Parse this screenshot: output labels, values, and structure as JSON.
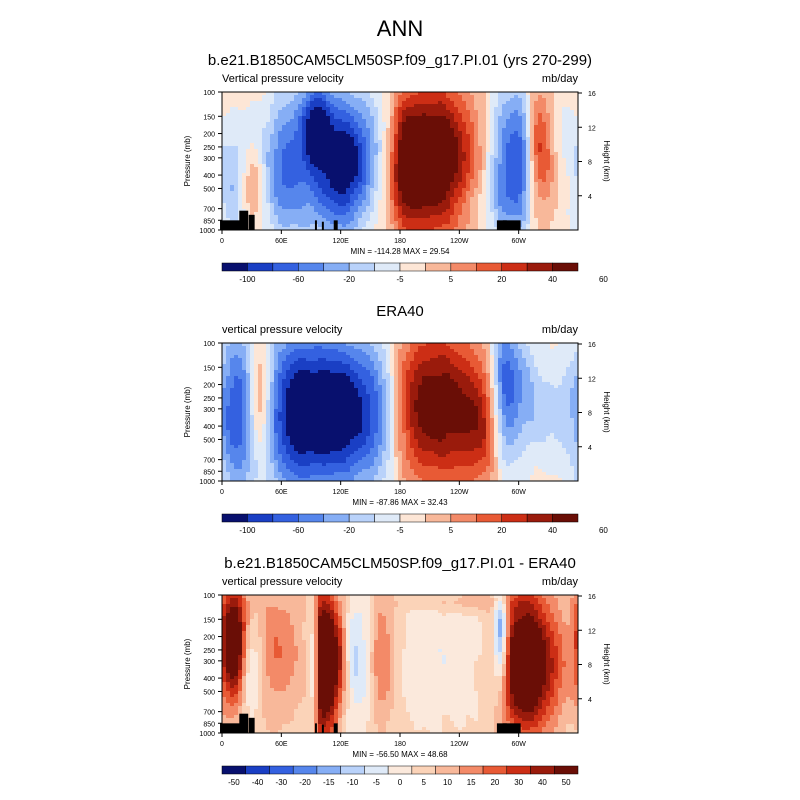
{
  "figure": {
    "title": "ANN"
  },
  "colors": {
    "bwr": [
      "#08106e",
      "#1a3fc4",
      "#3461e0",
      "#5686ec",
      "#86aef5",
      "#b9d2fa",
      "#dfeaf8",
      "#fde6d6",
      "#f8b89a",
      "#f38a68",
      "#e85a35",
      "#cc2e15",
      "#9a1b0c",
      "#6a0e06"
    ],
    "diff": [
      "#08106e",
      "#1a3fc4",
      "#3461e0",
      "#5686ec",
      "#86aef5",
      "#b9d2fa",
      "#dfeaf8",
      "#fbe9dc",
      "#fbd3b8",
      "#f8b89a",
      "#f38a68",
      "#e85a35",
      "#cc2e15",
      "#9a1b0c",
      "#6a0e06"
    ],
    "land": "#000000"
  },
  "chart_data": [
    {
      "type": "heatmap",
      "title": "b.e21.B1850CAM5CLM50SP.f09_g17.PI.01 (yrs 270-299)",
      "left_label": "Vertical pressure velocity",
      "right_label": "mb/day",
      "ylabel": "Pressure (mb)",
      "ylabel_right": "Height (km)",
      "x_ticks": [
        "0",
        "60E",
        "120E",
        "180",
        "120W",
        "60W"
      ],
      "y_ticks": [
        "100",
        "150",
        "200",
        "250",
        "300",
        "400",
        "500",
        "700",
        "850",
        "1000"
      ],
      "y_ticks_right": [
        "16",
        "12",
        "8",
        "4"
      ],
      "min_max": "MIN = -114.28   MAX =  29.54",
      "colorbar_labels": [
        "-100",
        "-60",
        "-20",
        "-5",
        "5",
        "20",
        "40",
        "60"
      ],
      "colorbar_bins": 14,
      "palette": "bwr",
      "bg_level": 0.2,
      "features": [
        [
          15,
          0.3,
          15,
          0.3,
          -0.8
        ],
        [
          30,
          0.3,
          9,
          0.2,
          1.0
        ],
        [
          60,
          0.4,
          12,
          0.35,
          -0.6
        ],
        [
          100,
          0.5,
          35,
          0.4,
          -1.5
        ],
        [
          95,
          0.78,
          10,
          0.18,
          -1.2
        ],
        [
          125,
          0.4,
          15,
          0.3,
          -0.8
        ],
        [
          150,
          0.6,
          25,
          0.3,
          -0.7
        ],
        [
          212,
          0.5,
          30,
          0.38,
          2.3
        ],
        [
          185,
          0.5,
          10,
          0.3,
          1.0
        ],
        [
          289,
          0.5,
          14,
          0.4,
          -1.4
        ],
        [
          305,
          0.55,
          8,
          0.35,
          -1.0
        ],
        [
          320,
          0.6,
          12,
          0.3,
          1.3
        ],
        [
          265,
          0.2,
          30,
          0.15,
          -0.3
        ],
        [
          340,
          0.7,
          15,
          0.2,
          -0.4
        ]
      ],
      "land": [
        [
          8,
          1.0,
          20,
          0.07
        ],
        [
          22,
          1.0,
          9,
          0.14
        ],
        [
          30,
          1.0,
          6,
          0.11
        ],
        [
          95,
          1.0,
          2,
          0.07
        ],
        [
          102,
          1.0,
          2,
          0.06
        ],
        [
          115,
          1.0,
          4,
          0.07
        ],
        [
          283,
          1.0,
          10,
          0.07
        ],
        [
          293,
          1.0,
          18,
          0.07
        ]
      ]
    },
    {
      "type": "heatmap",
      "title": "ERA40",
      "left_label": "vertical pressure velocity",
      "right_label": "mb/day",
      "ylabel": "Pressure (mb)",
      "ylabel_right": "Height (km)",
      "x_ticks": [
        "0",
        "60E",
        "120E",
        "180",
        "120W",
        "60W"
      ],
      "y_ticks": [
        "100",
        "150",
        "200",
        "250",
        "300",
        "400",
        "500",
        "700",
        "850",
        "1000"
      ],
      "y_ticks_right": [
        "16",
        "12",
        "8",
        "4"
      ],
      "min_max": "MIN = -87.86   MAX =  32.43",
      "colorbar_labels": [
        "-100",
        "-60",
        "-20",
        "-5",
        "5",
        "20",
        "40",
        "60"
      ],
      "colorbar_bins": 14,
      "palette": "bwr",
      "bg_level": 0.2,
      "features": [
        [
          15,
          0.5,
          15,
          0.45,
          -1.5
        ],
        [
          38,
          0.6,
          8,
          0.3,
          1.2
        ],
        [
          70,
          0.5,
          22,
          0.45,
          -1.3
        ],
        [
          100,
          0.5,
          28,
          0.4,
          -1.6
        ],
        [
          130,
          0.5,
          20,
          0.4,
          -1.2
        ],
        [
          160,
          0.5,
          15,
          0.4,
          -0.9
        ],
        [
          195,
          0.55,
          20,
          0.4,
          1.0
        ],
        [
          230,
          0.55,
          25,
          0.4,
          1.4
        ],
        [
          285,
          0.6,
          10,
          0.4,
          -1.8
        ],
        [
          305,
          0.6,
          12,
          0.35,
          -0.9
        ],
        [
          270,
          0.4,
          20,
          0.3,
          1.0
        ],
        [
          335,
          0.5,
          15,
          0.3,
          -0.5
        ]
      ],
      "land": []
    },
    {
      "type": "heatmap",
      "title": "b.e21.B1850CAM5CLM50SP.f09_g17.PI.01 - ERA40",
      "left_label": "vertical pressure velocity",
      "right_label": "mb/day",
      "ylabel": "Pressure (mb)",
      "ylabel_right": "Height (km)",
      "x_ticks": [
        "0",
        "60E",
        "120E",
        "180",
        "120W",
        "60W"
      ],
      "y_ticks": [
        "100",
        "150",
        "200",
        "250",
        "300",
        "400",
        "500",
        "700",
        "850",
        "1000"
      ],
      "y_ticks_right": [
        "16",
        "12",
        "8",
        "4"
      ],
      "min_max": "MIN = -56.50   MAX =  48.68",
      "colorbar_labels": [
        "-50",
        "-40",
        "-30",
        "-20",
        "-15",
        "-10",
        "-5",
        "0",
        "5",
        "10",
        "15",
        "20",
        "30",
        "40",
        "50"
      ],
      "colorbar_bins": 15,
      "palette": "diff",
      "bg_level": 0.22,
      "features": [
        [
          12,
          0.65,
          10,
          0.3,
          2.3
        ],
        [
          28,
          0.5,
          8,
          0.25,
          -1.0
        ],
        [
          55,
          0.6,
          20,
          0.35,
          0.7
        ],
        [
          100,
          0.5,
          5,
          0.4,
          2.2
        ],
        [
          93,
          0.5,
          4,
          0.3,
          -0.9
        ],
        [
          110,
          0.5,
          5,
          0.35,
          2.0
        ],
        [
          120,
          0.55,
          5,
          0.3,
          1.2
        ],
        [
          140,
          0.55,
          15,
          0.35,
          -0.7
        ],
        [
          160,
          0.55,
          10,
          0.35,
          1.0
        ],
        [
          220,
          0.55,
          30,
          0.35,
          -0.3
        ],
        [
          282,
          0.7,
          5,
          0.25,
          -1.6
        ],
        [
          303,
          0.5,
          15,
          0.35,
          2.3
        ],
        [
          330,
          0.5,
          15,
          0.35,
          1.0
        ],
        [
          255,
          0.95,
          40,
          0.05,
          0.4
        ]
      ],
      "land": [
        [
          8,
          1.0,
          20,
          0.07
        ],
        [
          22,
          1.0,
          9,
          0.14
        ],
        [
          30,
          1.0,
          6,
          0.11
        ],
        [
          95,
          1.0,
          2,
          0.07
        ],
        [
          102,
          1.0,
          2,
          0.06
        ],
        [
          115,
          1.0,
          4,
          0.07
        ],
        [
          283,
          1.0,
          10,
          0.07
        ],
        [
          293,
          1.0,
          18,
          0.07
        ]
      ]
    }
  ]
}
